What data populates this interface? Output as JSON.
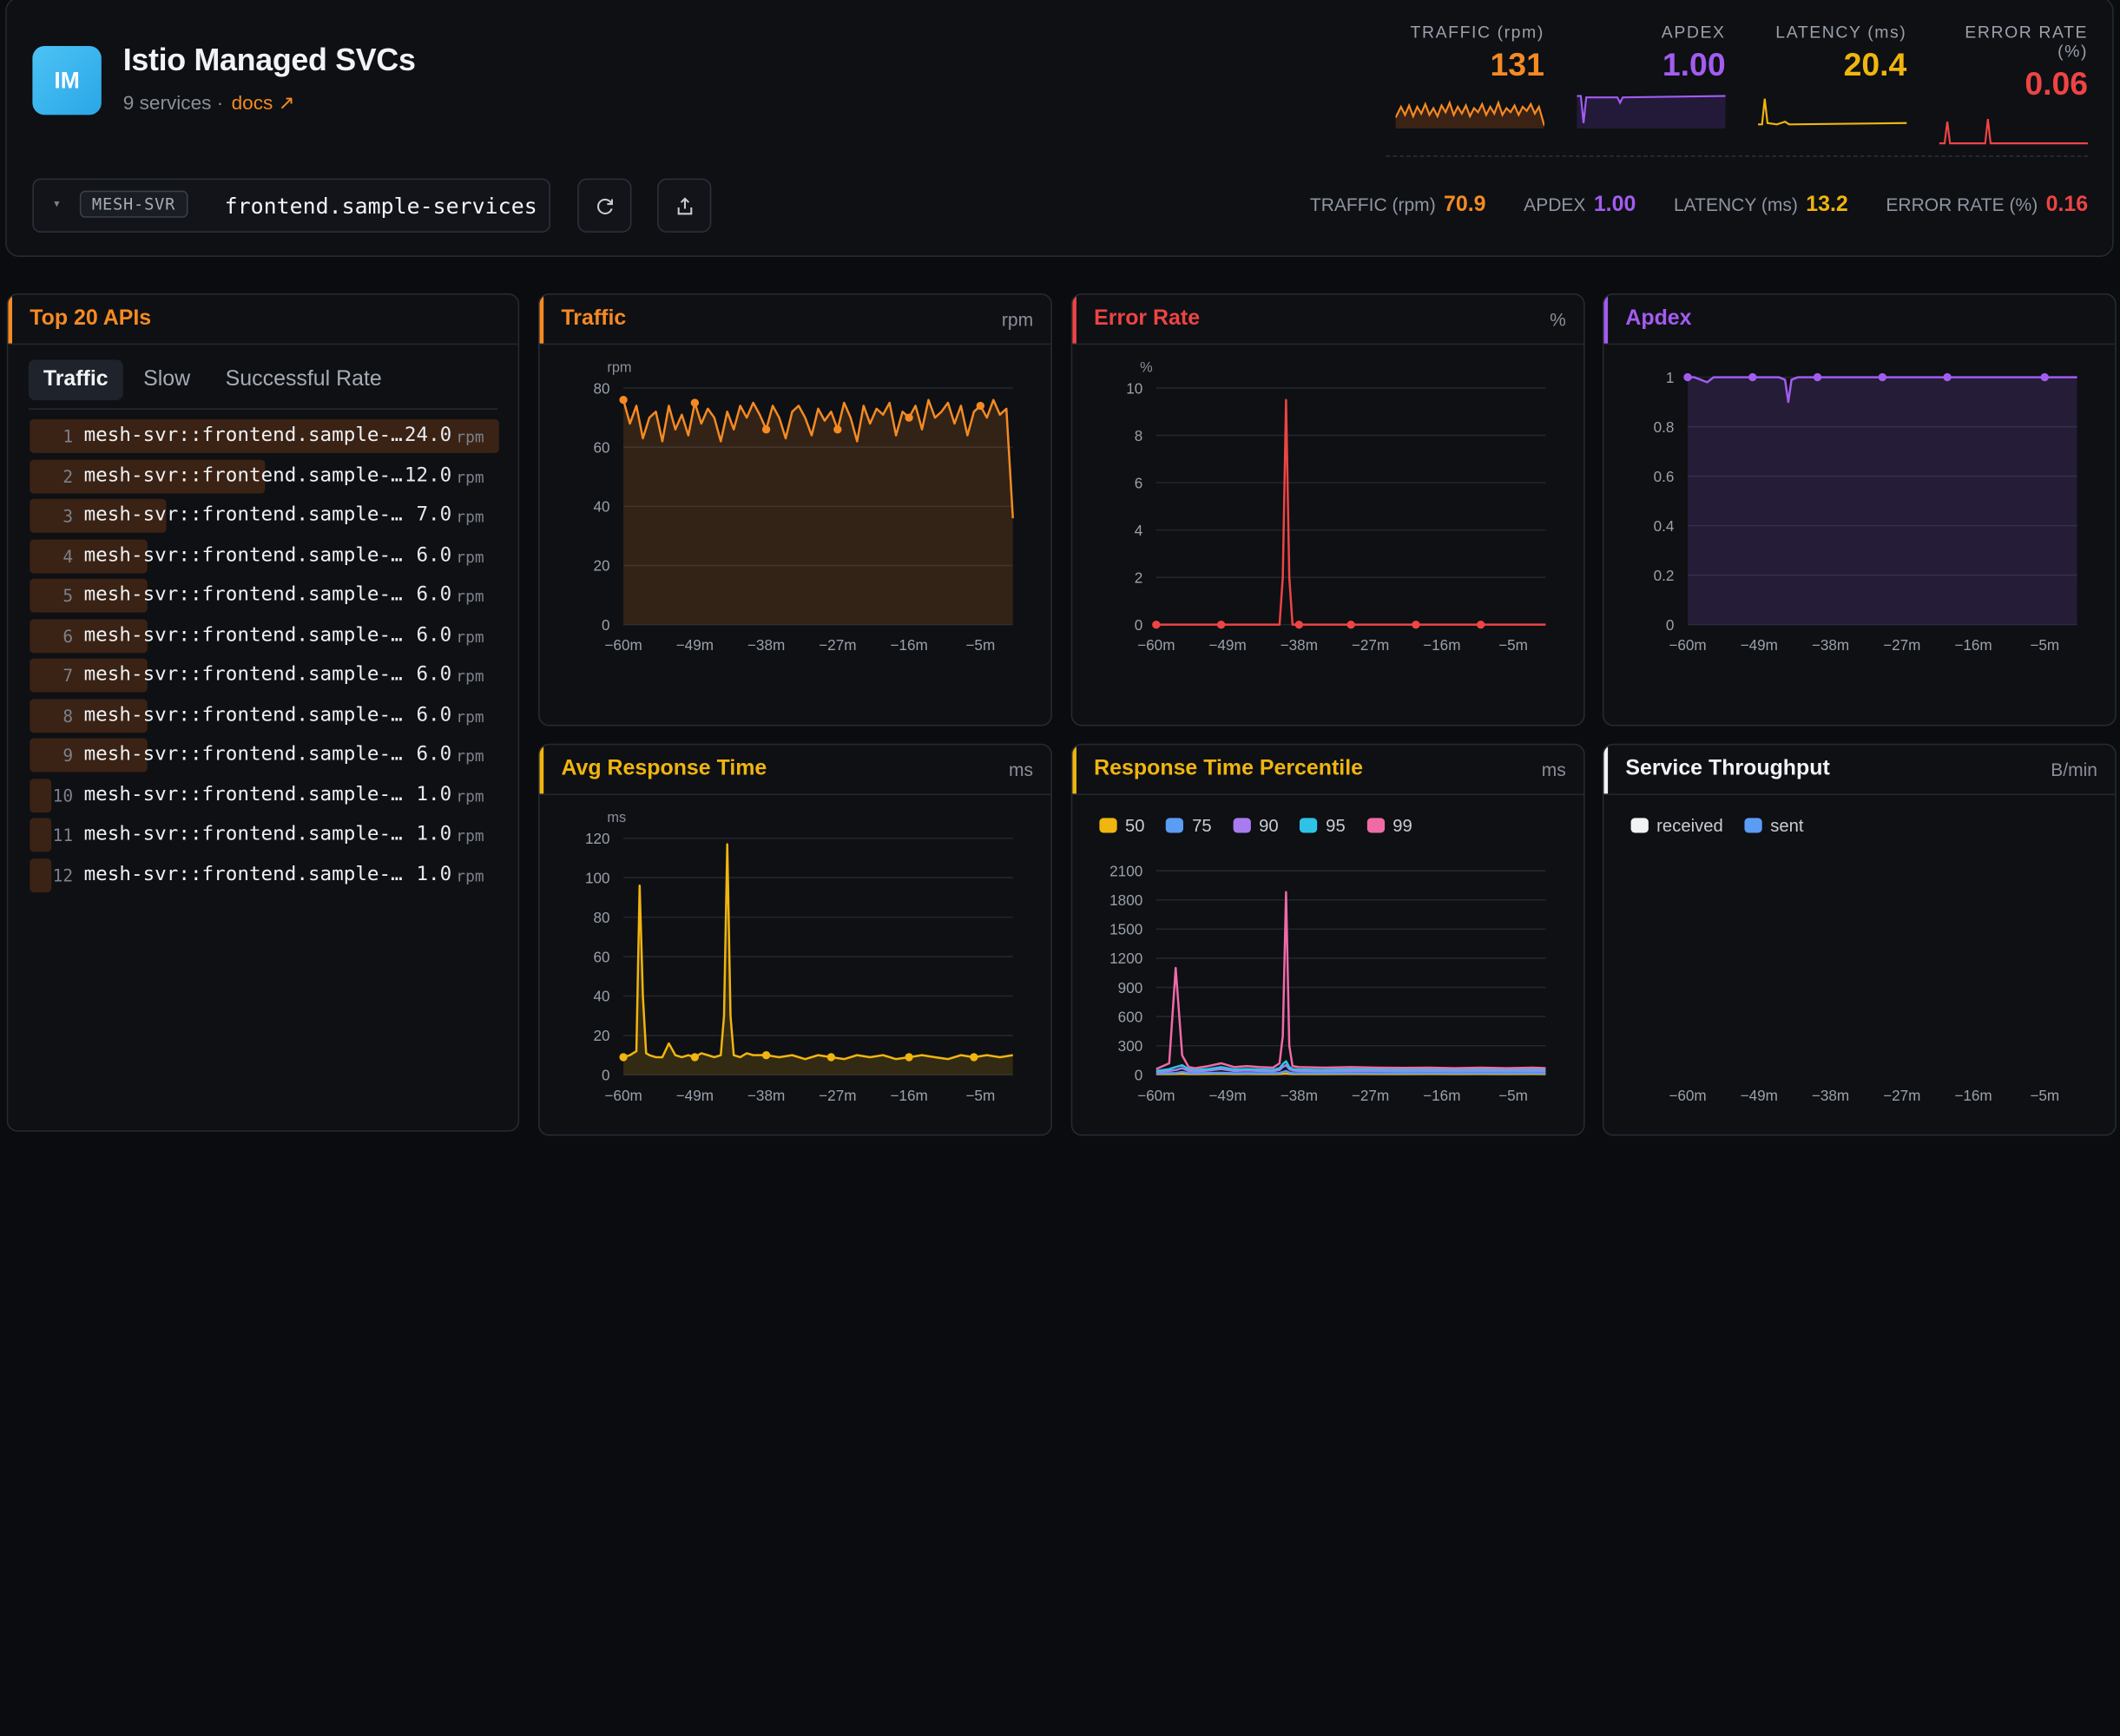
{
  "header": {
    "logo_text": "IM",
    "title": "Istio Managed SVCs",
    "subtitle": "9 services ·",
    "docs_label": "docs ↗",
    "kpis": [
      {
        "label": "TRAFFIC (rpm)",
        "value": "131",
        "color": "#f58a23"
      },
      {
        "label": "APDEX",
        "value": "1.00",
        "color": "#a35cf0"
      },
      {
        "label": "LATENCY (ms)",
        "value": "20.4",
        "color": "#f0b50f"
      },
      {
        "label": "ERROR RATE (%)",
        "value": "0.06",
        "color": "#ee4444"
      }
    ],
    "selector": {
      "caret": "▾",
      "tag": "MESH-SVR",
      "value": "frontend.sample-services"
    },
    "refresh_icon": "refresh-icon",
    "share_icon": "share-icon",
    "sub_kpis": [
      {
        "label": "TRAFFIC (rpm)",
        "value": "70.9",
        "color": "#f58a23"
      },
      {
        "label": "APDEX",
        "value": "1.00",
        "color": "#a35cf0"
      },
      {
        "label": "LATENCY (ms)",
        "value": "13.2",
        "color": "#f0b50f"
      },
      {
        "label": "ERROR RATE (%)",
        "value": "0.16",
        "color": "#ee4444"
      }
    ]
  },
  "top_apis": {
    "title": "Top 20 APIs",
    "accent": "#f58a23",
    "tabs": [
      "Traffic",
      "Slow",
      "Successful Rate"
    ],
    "active_tab": "Traffic",
    "unit": "rpm",
    "rows": [
      {
        "idx": "1",
        "name": "mesh-svr::frontend.sample-services",
        "value": "24.0",
        "ratio": 1.0
      },
      {
        "idx": "2",
        "name": "mesh-svr::frontend.sample-services",
        "value": "12.0",
        "ratio": 0.5
      },
      {
        "idx": "3",
        "name": "mesh-svr::frontend.sample-services",
        "value": "7.0",
        "ratio": 0.292
      },
      {
        "idx": "4",
        "name": "mesh-svr::frontend.sample-services",
        "value": "6.0",
        "ratio": 0.25
      },
      {
        "idx": "5",
        "name": "mesh-svr::frontend.sample-services",
        "value": "6.0",
        "ratio": 0.25
      },
      {
        "idx": "6",
        "name": "mesh-svr::frontend.sample-services",
        "value": "6.0",
        "ratio": 0.25
      },
      {
        "idx": "7",
        "name": "mesh-svr::frontend.sample-services",
        "value": "6.0",
        "ratio": 0.25
      },
      {
        "idx": "8",
        "name": "mesh-svr::frontend.sample-services",
        "value": "6.0",
        "ratio": 0.25
      },
      {
        "idx": "9",
        "name": "mesh-svr::frontend.sample-services",
        "value": "6.0",
        "ratio": 0.25
      },
      {
        "idx": "10",
        "name": "mesh-svr::frontend.sample-services",
        "value": "1.0",
        "ratio": 0.042
      },
      {
        "idx": "11",
        "name": "mesh-svr::frontend.sample-services",
        "value": "1.0",
        "ratio": 0.042
      },
      {
        "idx": "12",
        "name": "mesh-svr::frontend.sample-services",
        "value": "1.0",
        "ratio": 0.042
      }
    ]
  },
  "chart_data": [
    {
      "id": "traffic",
      "type": "area",
      "title": "Traffic",
      "unit_label": "rpm",
      "ylabel": "rpm",
      "color": "#f58a23",
      "x_ticks": [
        "−60m",
        "−49m",
        "−38m",
        "−27m",
        "−16m",
        "−5m"
      ],
      "y_ticks": [
        0,
        20,
        40,
        60,
        80
      ],
      "ylim": [
        0,
        80
      ],
      "x": [
        -60,
        -59,
        -58,
        -57,
        -56,
        -55,
        -54,
        -53,
        -52,
        -51,
        -50,
        -49,
        -48,
        -47,
        -46,
        -45,
        -44,
        -43,
        -42,
        -41,
        -40,
        -39,
        -38,
        -37,
        -36,
        -35,
        -34,
        -33,
        -32,
        -31,
        -30,
        -29,
        -28,
        -27,
        -26,
        -25,
        -24,
        -23,
        -22,
        -21,
        -20,
        -19,
        -18,
        -17,
        -16,
        -15,
        -14,
        -13,
        -12,
        -11,
        -10,
        -9,
        -8,
        -7,
        -6,
        -5,
        -4,
        -3,
        -2,
        -1,
        0
      ],
      "values": [
        76,
        68,
        74,
        63,
        70,
        72,
        62,
        74,
        66,
        71,
        64,
        75,
        68,
        73,
        70,
        62,
        72,
        66,
        74,
        70,
        75,
        71,
        66,
        74,
        70,
        63,
        72,
        74,
        70,
        64,
        73,
        69,
        72,
        66,
        75,
        70,
        62,
        74,
        68,
        73,
        71,
        75,
        64,
        72,
        70,
        74,
        66,
        76,
        70,
        72,
        75,
        68,
        74,
        64,
        72,
        74,
        70,
        76,
        71,
        73,
        36
      ],
      "markers": [
        -60,
        -49,
        -38,
        -27,
        -16,
        -5
      ]
    },
    {
      "id": "error_rate",
      "type": "line",
      "title": "Error Rate",
      "unit_label": "%",
      "ylabel": "%",
      "color": "#ee4444",
      "x_ticks": [
        "−60m",
        "−49m",
        "−38m",
        "−27m",
        "−16m",
        "−5m"
      ],
      "y_ticks": [
        0,
        2,
        4,
        6,
        8,
        10
      ],
      "ylim": [
        0,
        10
      ],
      "x": [
        -60,
        -50,
        -45,
        -42,
        -41,
        -40.5,
        -40,
        -39.5,
        -39,
        -38,
        -30,
        -20,
        -10,
        0
      ],
      "values": [
        0,
        0,
        0,
        0,
        0,
        2,
        9.5,
        2,
        0,
        0,
        0,
        0,
        0,
        0
      ],
      "markers": [
        -60,
        -49,
        -38,
        -27,
        -16,
        -5
      ]
    },
    {
      "id": "apdex",
      "type": "area",
      "title": "Apdex",
      "unit_label": "",
      "ylabel": "",
      "color": "#a35cf0",
      "x_ticks": [
        "−60m",
        "−49m",
        "−38m",
        "−27m",
        "−16m",
        "−5m"
      ],
      "y_ticks": [
        0,
        0.2,
        0.4,
        0.6,
        0.8,
        1
      ],
      "ylim": [
        0,
        1
      ],
      "x": [
        -60,
        -59,
        -58,
        -57,
        -56,
        -50,
        -46,
        -45,
        -44.5,
        -44,
        -43,
        -40,
        -30,
        -20,
        -10,
        -5,
        0
      ],
      "values": [
        1,
        1,
        0.99,
        0.98,
        1,
        1,
        1,
        0.99,
        0.9,
        0.99,
        1,
        1,
        1,
        1,
        1,
        1,
        1
      ],
      "markers": [
        -60,
        -49,
        -38,
        -27,
        -16,
        -5
      ]
    },
    {
      "id": "avg_response_time",
      "type": "area",
      "title": "Avg Response Time",
      "unit_label": "ms",
      "ylabel": "ms",
      "color": "#f0b50f",
      "x_ticks": [
        "−60m",
        "−49m",
        "−38m",
        "−27m",
        "−16m",
        "−5m"
      ],
      "y_ticks": [
        0,
        20,
        40,
        60,
        80,
        100,
        120
      ],
      "ylim": [
        0,
        120
      ],
      "x": [
        -60,
        -59,
        -58,
        -57.5,
        -57,
        -56.5,
        -56,
        -55,
        -54,
        -53,
        -52,
        -51,
        -50,
        -49,
        -48,
        -47,
        -46,
        -45,
        -44.5,
        -44,
        -43.5,
        -43,
        -42,
        -41,
        -40,
        -38,
        -36,
        -34,
        -32,
        -30,
        -28,
        -26,
        -24,
        -22,
        -20,
        -18,
        -16,
        -14,
        -12,
        -10,
        -8,
        -6,
        -4,
        -2,
        0
      ],
      "values": [
        9,
        10,
        12,
        96,
        40,
        11,
        10,
        9,
        9,
        16,
        10,
        9,
        10,
        9,
        11,
        10,
        9,
        10,
        30,
        117,
        30,
        10,
        9,
        11,
        10,
        10,
        9,
        10,
        8,
        10,
        9,
        8,
        10,
        9,
        10,
        8,
        9,
        10,
        9,
        8,
        10,
        9,
        10,
        9,
        10
      ],
      "markers": [
        -60,
        -49,
        -38,
        -27,
        -16,
        -5
      ]
    },
    {
      "id": "response_time_percentile",
      "type": "line",
      "title": "Response Time Percentile",
      "unit_label": "ms",
      "x_ticks": [
        "−60m",
        "−49m",
        "−38m",
        "−27m",
        "−16m",
        "−5m"
      ],
      "y_ticks": [
        0,
        300,
        600,
        900,
        1200,
        1500,
        1800,
        2100
      ],
      "ylim": [
        0,
        2100
      ],
      "x": [
        -60,
        -58,
        -57,
        -56,
        -55,
        -54,
        -52,
        -50,
        -48,
        -46,
        -44,
        -42,
        -41,
        -40.5,
        -40,
        -39.5,
        -39,
        -38,
        -34,
        -30,
        -26,
        -22,
        -18,
        -14,
        -10,
        -6,
        -2,
        0
      ],
      "series": [
        {
          "name": "50",
          "color": "#f0b50f",
          "values": [
            8,
            9,
            10,
            12,
            9,
            9,
            10,
            12,
            9,
            10,
            9,
            9,
            10,
            12,
            14,
            11,
            9,
            10,
            9,
            10,
            9,
            9,
            10,
            9,
            10,
            9,
            10,
            9
          ]
        },
        {
          "name": "75",
          "color": "#5b9cf5",
          "values": [
            15,
            18,
            20,
            30,
            18,
            16,
            20,
            22,
            16,
            18,
            17,
            16,
            20,
            30,
            40,
            25,
            18,
            17,
            16,
            18,
            17,
            16,
            18,
            17,
            18,
            16,
            18,
            17
          ]
        },
        {
          "name": "90",
          "color": "#a87cf0",
          "values": [
            30,
            40,
            50,
            70,
            40,
            35,
            45,
            60,
            40,
            45,
            40,
            38,
            50,
            80,
            100,
            60,
            45,
            40,
            38,
            42,
            40,
            38,
            40,
            38,
            40,
            38,
            40,
            38
          ]
        },
        {
          "name": "95",
          "color": "#2ec3e6",
          "values": [
            40,
            60,
            80,
            100,
            60,
            50,
            60,
            80,
            55,
            60,
            55,
            52,
            70,
            110,
            140,
            80,
            60,
            55,
            52,
            58,
            55,
            52,
            55,
            52,
            55,
            52,
            55,
            52
          ]
        },
        {
          "name": "99",
          "color": "#f06aa6",
          "values": [
            60,
            120,
            1100,
            200,
            80,
            70,
            90,
            120,
            80,
            90,
            80,
            75,
            120,
            400,
            1880,
            300,
            90,
            80,
            75,
            80,
            75,
            72,
            75,
            70,
            75,
            70,
            75,
            70
          ]
        }
      ]
    },
    {
      "id": "service_throughput",
      "type": "line",
      "title": "Service Throughput",
      "unit_label": "B/min",
      "x_ticks": [
        "−60m",
        "−49m",
        "−38m",
        "−27m",
        "−16m",
        "−5m"
      ],
      "series": [
        {
          "name": "received",
          "color": "#f2f3f5",
          "values": []
        },
        {
          "name": "sent",
          "color": "#5b9cf5",
          "values": []
        }
      ]
    }
  ]
}
